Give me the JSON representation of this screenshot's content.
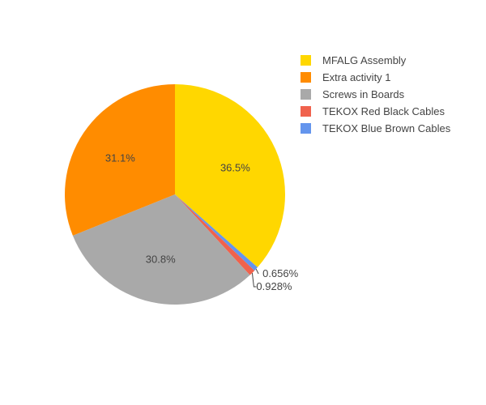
{
  "chart_data": {
    "type": "pie",
    "categories": [
      "MFALG Assembly",
      "Extra activity 1",
      "Screws in Boards",
      "TEKOX Red Black Cables",
      "TEKOX Blue Brown Cables"
    ],
    "values": [
      36.5,
      31.1,
      30.8,
      0.928,
      0.656
    ],
    "labels": [
      "36.5%",
      "31.1%",
      "30.8%",
      "0.928%",
      "0.656%"
    ],
    "colors": [
      "#FFD700",
      "#FF8C00",
      "#A9A9A9",
      "#F0624D",
      "#6495ED"
    ],
    "slice_order": [
      0,
      4,
      3,
      2,
      1
    ],
    "direction": "clockwise",
    "start": "top",
    "legend_position": "top-right"
  }
}
